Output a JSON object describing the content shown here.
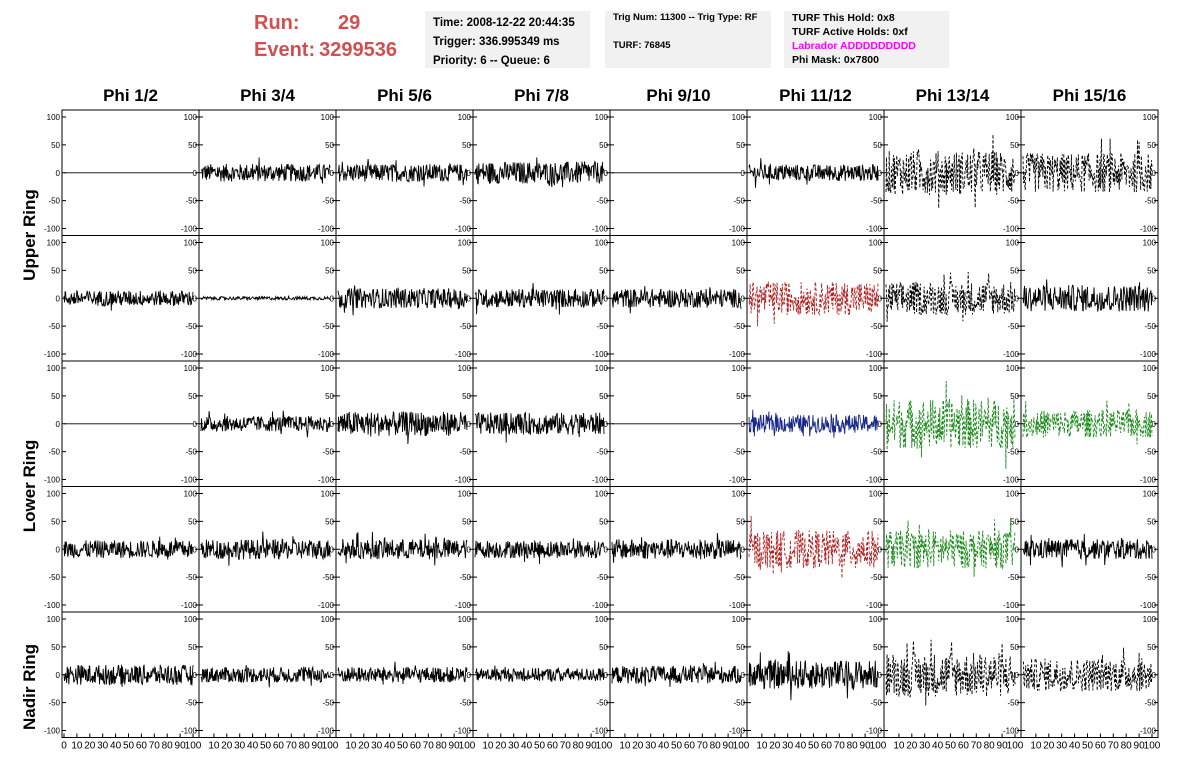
{
  "run_info": {
    "run_label": "Run:",
    "run_value": "29",
    "event_label": "Event:",
    "event_value": "3299536",
    "color": "#d05050"
  },
  "time_box": {
    "time": "Time: 2008-12-22 20:44:35",
    "trigger": "Trigger: 336.995349 ms",
    "priority": "Priority: 6 -- Queue: 6"
  },
  "trig_box": {
    "trig_line": "Trig Num: 11300 -- Trig Type: RF",
    "turf_line": "TURF: 76845"
  },
  "turf_box": {
    "this_hold": "TURF This Hold: 0x8",
    "active_holds": "TURF Active Holds: 0xf",
    "labrador": "Labrador ADDDDDDDDD",
    "labrador_color": "#ff00ff",
    "phi_mask": "Phi Mask: 0x7800"
  },
  "phi_labels": [
    "Phi 1/2",
    "Phi 3/4",
    "Phi 5/6",
    "Phi 7/8",
    "Phi 9/10",
    "Phi 11/12",
    "Phi 13/14",
    "Phi 15/16"
  ],
  "ring_labels": [
    "Upper Ring",
    "Lower Ring",
    "Nadir Ring"
  ],
  "y_ticks": [
    "100",
    "50",
    "0",
    "-50",
    "-100"
  ],
  "x_ticks": [
    "0",
    "10",
    "20",
    "30",
    "40",
    "50",
    "60",
    "70",
    "80",
    "90",
    "100"
  ],
  "colors": {
    "black": "#000000",
    "red": "#b02020",
    "blue": "#1a2a8a",
    "green": "#1a8a1a"
  },
  "chart_data": {
    "type": "line",
    "description_grid": "5 rows x 8 columns of waveform panels",
    "x_range": [
      0,
      100
    ],
    "y_range": [
      -100,
      100
    ],
    "row_labels": [
      "Upper Ring",
      "Upper Ring",
      "Lower Ring",
      "Lower Ring",
      "Nadir Ring"
    ],
    "column_labels": [
      "Phi 1/2",
      "Phi 3/4",
      "Phi 5/6",
      "Phi 7/8",
      "Phi 9/10",
      "Phi 11/12",
      "Phi 13/14",
      "Phi 15/16"
    ],
    "panels": [
      [
        {
          "style": "flat",
          "color": "black",
          "amp": 0
        },
        {
          "style": "solid",
          "color": "black",
          "amp": 16
        },
        {
          "style": "solid",
          "color": "black",
          "amp": 16
        },
        {
          "style": "solid",
          "color": "black",
          "amp": 20
        },
        {
          "style": "flat",
          "color": "black",
          "amp": 0
        },
        {
          "style": "solid",
          "color": "black",
          "amp": 15
        },
        {
          "style": "dashed",
          "color": "black",
          "amp": 40
        },
        {
          "style": "dashed",
          "color": "black",
          "amp": 36
        }
      ],
      [
        {
          "style": "solid",
          "color": "black",
          "amp": 14
        },
        {
          "style": "solid",
          "color": "black",
          "amp": 3
        },
        {
          "style": "solid",
          "color": "black",
          "amp": 18
        },
        {
          "style": "solid",
          "color": "black",
          "amp": 17
        },
        {
          "style": "solid",
          "color": "black",
          "amp": 17
        },
        {
          "style": "dashed",
          "color": "red",
          "amp": 30
        },
        {
          "style": "dashed",
          "color": "black",
          "amp": 30
        },
        {
          "style": "solid",
          "color": "black",
          "amp": 24
        }
      ],
      [
        {
          "style": "flat",
          "color": "black",
          "amp": 0
        },
        {
          "style": "solid",
          "color": "black",
          "amp": 14
        },
        {
          "style": "solid",
          "color": "black",
          "amp": 22
        },
        {
          "style": "solid",
          "color": "black",
          "amp": 20
        },
        {
          "style": "flat",
          "color": "black",
          "amp": 0
        },
        {
          "style": "solid",
          "color": "blue",
          "amp": 16
        },
        {
          "style": "dashed",
          "color": "green",
          "amp": 45
        },
        {
          "style": "dashed",
          "color": "green",
          "amp": 25
        }
      ],
      [
        {
          "style": "solid",
          "color": "black",
          "amp": 16
        },
        {
          "style": "solid",
          "color": "black",
          "amp": 18
        },
        {
          "style": "solid",
          "color": "black",
          "amp": 18
        },
        {
          "style": "solid",
          "color": "black",
          "amp": 16
        },
        {
          "style": "solid",
          "color": "black",
          "amp": 18
        },
        {
          "style": "dashed",
          "color": "red",
          "amp": 34
        },
        {
          "style": "dashed",
          "color": "green",
          "amp": 34
        },
        {
          "style": "solid",
          "color": "black",
          "amp": 18
        }
      ],
      [
        {
          "style": "solid",
          "color": "black",
          "amp": 18
        },
        {
          "style": "solid",
          "color": "black",
          "amp": 14
        },
        {
          "style": "solid",
          "color": "black",
          "amp": 14
        },
        {
          "style": "solid",
          "color": "black",
          "amp": 12
        },
        {
          "style": "solid",
          "color": "black",
          "amp": 16
        },
        {
          "style": "solid",
          "color": "black",
          "amp": 26
        },
        {
          "style": "dashed",
          "color": "black",
          "amp": 40
        },
        {
          "style": "dashed",
          "color": "black",
          "amp": 30
        }
      ]
    ]
  }
}
